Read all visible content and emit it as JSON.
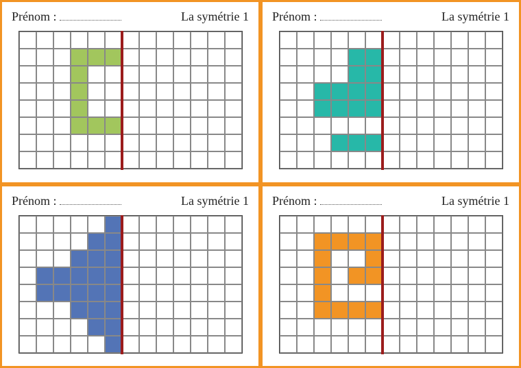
{
  "border_color": "#f29424",
  "header": {
    "prenom_label": "Prénom :",
    "title": "La symétrie 1",
    "font_size": 18
  },
  "grid": {
    "cols": 13,
    "rows": 8,
    "cell_size": 25,
    "grid_line_color": "#888888",
    "grid_border_color": "#444444",
    "axis_color": "#9b1c1c",
    "axis_width": 4,
    "axis_col": 6
  },
  "panels": [
    {
      "id": "top-left",
      "fill_color": "#a2c65d",
      "cells": [
        [
          1,
          3
        ],
        [
          1,
          4
        ],
        [
          1,
          5
        ],
        [
          2,
          3
        ],
        [
          3,
          3
        ],
        [
          4,
          3
        ],
        [
          5,
          3
        ],
        [
          5,
          4
        ],
        [
          5,
          5
        ]
      ]
    },
    {
      "id": "top-right",
      "fill_color": "#27b8a8",
      "cells": [
        [
          1,
          4
        ],
        [
          1,
          5
        ],
        [
          2,
          4
        ],
        [
          2,
          5
        ],
        [
          3,
          2
        ],
        [
          3,
          3
        ],
        [
          3,
          4
        ],
        [
          3,
          5
        ],
        [
          4,
          2
        ],
        [
          4,
          3
        ],
        [
          4,
          4
        ],
        [
          4,
          5
        ],
        [
          6,
          3
        ],
        [
          6,
          4
        ],
        [
          6,
          5
        ]
      ]
    },
    {
      "id": "bottom-left",
      "fill_color": "#5374b6",
      "cells": [
        [
          0,
          5
        ],
        [
          1,
          4
        ],
        [
          1,
          5
        ],
        [
          2,
          3
        ],
        [
          2,
          4
        ],
        [
          2,
          5
        ],
        [
          3,
          1
        ],
        [
          3,
          2
        ],
        [
          3,
          3
        ],
        [
          3,
          4
        ],
        [
          3,
          5
        ],
        [
          4,
          1
        ],
        [
          4,
          2
        ],
        [
          4,
          3
        ],
        [
          4,
          4
        ],
        [
          4,
          5
        ],
        [
          5,
          3
        ],
        [
          5,
          4
        ],
        [
          5,
          5
        ],
        [
          6,
          4
        ],
        [
          6,
          5
        ],
        [
          7,
          5
        ]
      ]
    },
    {
      "id": "bottom-right",
      "fill_color": "#f29424",
      "cells": [
        [
          1,
          2
        ],
        [
          1,
          3
        ],
        [
          1,
          4
        ],
        [
          1,
          5
        ],
        [
          2,
          2
        ],
        [
          2,
          5
        ],
        [
          3,
          2
        ],
        [
          3,
          4
        ],
        [
          3,
          5
        ],
        [
          4,
          2
        ],
        [
          5,
          2
        ],
        [
          5,
          3
        ],
        [
          5,
          4
        ],
        [
          5,
          5
        ]
      ]
    }
  ]
}
